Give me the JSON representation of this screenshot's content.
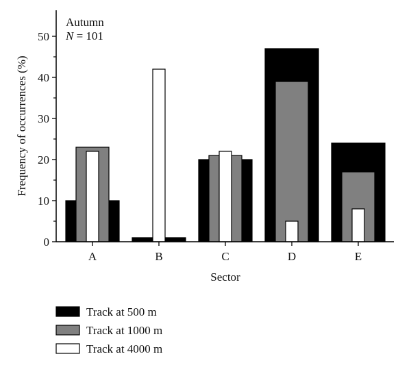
{
  "chart_data": {
    "type": "bar",
    "annotation": {
      "season": "Autumn",
      "n_symbol": "N",
      "n_text": " = 101"
    },
    "xlabel": "Sector",
    "ylabel": "Frequency of occurrences (%)",
    "ylim": [
      0,
      55
    ],
    "yticks": [
      0,
      10,
      20,
      30,
      40,
      50
    ],
    "grid": false,
    "legend_position": "bottom-left",
    "categories": [
      "A",
      "B",
      "C",
      "D",
      "E"
    ],
    "series": [
      {
        "name": "Track at 500 m",
        "color": "#000000",
        "values": [
          10,
          1,
          20,
          47,
          24
        ]
      },
      {
        "name": "Track at 1000 m",
        "color": "#808080",
        "values": [
          23,
          0,
          21,
          39,
          17
        ]
      },
      {
        "name": "Track at 4000 m",
        "color": "#ffffff",
        "values": [
          22,
          42,
          22,
          5,
          8
        ]
      }
    ]
  }
}
